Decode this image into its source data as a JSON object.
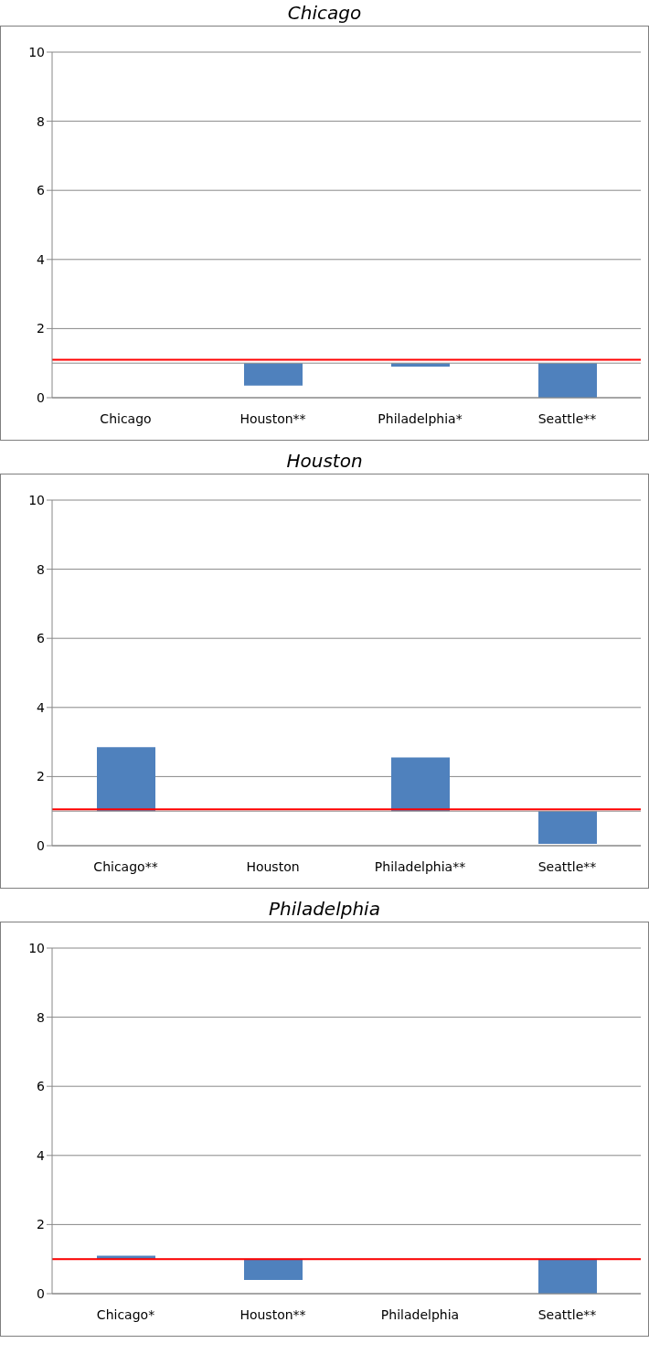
{
  "chart_data": [
    {
      "type": "bar",
      "title": "Chicago",
      "categories": [
        "Chicago",
        "Houston**",
        "Philadelphia*",
        "Seattle**"
      ],
      "base": [
        null,
        1,
        1,
        1
      ],
      "values": [
        null,
        -0.65,
        -0.1,
        -1.0
      ],
      "color": "#4f81bd",
      "ylim": [
        0,
        10
      ],
      "yticks": [
        0,
        2,
        4,
        6,
        8,
        10
      ],
      "grid": "y",
      "ref_lines": [
        {
          "axis": "y",
          "value": 1.1,
          "color": "#ff0000"
        }
      ]
    },
    {
      "type": "bar",
      "title": "Houston",
      "categories": [
        "Chicago**",
        "Houston",
        "Philadelphia**",
        "Seattle**"
      ],
      "base": [
        1,
        null,
        1,
        1
      ],
      "values": [
        1.85,
        null,
        1.55,
        -0.95
      ],
      "color": "#4f81bd",
      "ylim": [
        0,
        10
      ],
      "yticks": [
        0,
        2,
        4,
        6,
        8,
        10
      ],
      "grid": "y",
      "ref_lines": [
        {
          "axis": "y",
          "value": 1.05,
          "color": "#ff0000"
        }
      ]
    },
    {
      "type": "bar",
      "title": "Philadelphia",
      "categories": [
        "Chicago*",
        "Houston**",
        "Philadelphia",
        "Seattle**"
      ],
      "base": [
        1,
        1,
        null,
        1
      ],
      "values": [
        0.1,
        -0.6,
        null,
        -1.0
      ],
      "color": "#4f81bd",
      "ylim": [
        0,
        10
      ],
      "yticks": [
        0,
        2,
        4,
        6,
        8,
        10
      ],
      "grid": "y",
      "ref_lines": [
        {
          "axis": "y",
          "value": 1.0,
          "color": "#ff0000"
        }
      ]
    }
  ]
}
